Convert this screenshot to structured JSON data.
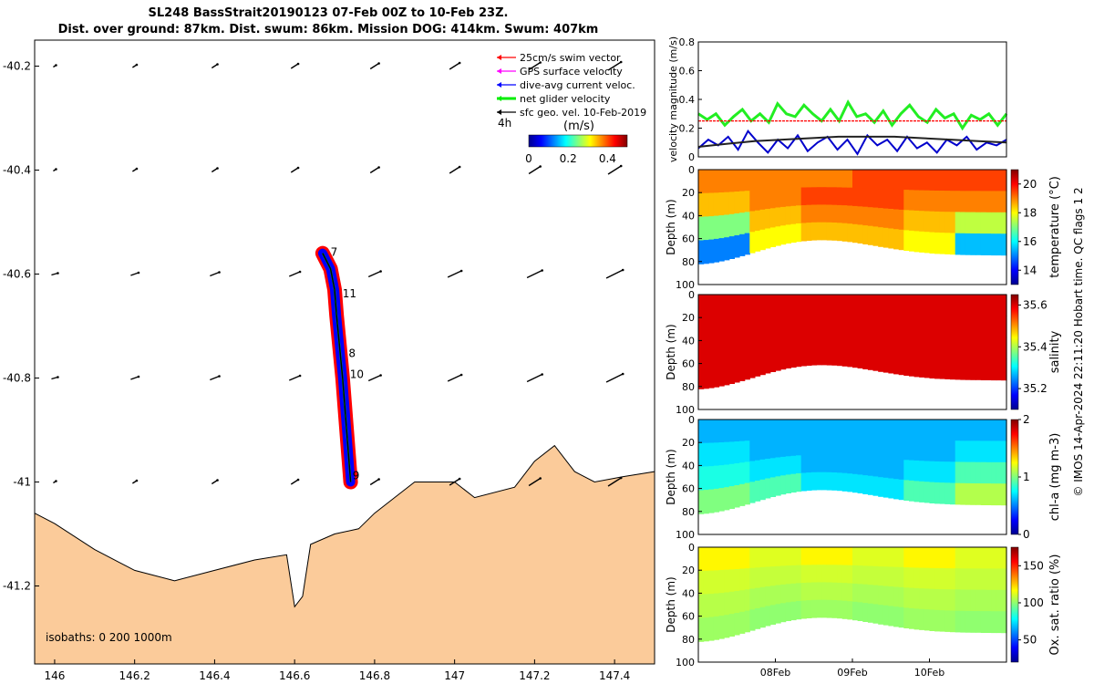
{
  "header": {
    "title_line1": "SL248 BassStrait20190123 07-Feb 00Z to 10-Feb 23Z.",
    "title_line2": "Dist. over ground: 87km. Dist. swum: 86km. Mission DOG: 414km. Swum: 407km"
  },
  "copyright": "© IMOS 14-Apr-2024 22:11:20 Hobart time. QC flags 1  2",
  "chart_data": [
    {
      "type": "map",
      "xlim": [
        145.95,
        147.5
      ],
      "ylim": [
        -41.35,
        -40.15
      ],
      "x_ticks": [
        "146",
        "146.2",
        "146.4",
        "146.6",
        "146.8",
        "147",
        "147.2",
        "147.4"
      ],
      "x_tick_values": [
        146,
        146.2,
        146.4,
        146.6,
        146.8,
        147,
        147.2,
        147.4
      ],
      "y_ticks": [
        "-40.2",
        "-40.4",
        "-40.6",
        "-40.8",
        "-41",
        "-41.2"
      ],
      "y_tick_values": [
        -40.2,
        -40.4,
        -40.6,
        -40.8,
        -41,
        -41.2
      ],
      "legend": [
        {
          "label": "25cm/s swim vector",
          "color": "#ff0000"
        },
        {
          "label": "GPS surface velocity",
          "color": "#ff00ff"
        },
        {
          "label": "dive-avg current veloc.",
          "color": "#0000ff"
        },
        {
          "label": "net glider velocity",
          "color": "#00ee00"
        },
        {
          "label": "sfc geo. vel. 10-Feb-2019",
          "color": "#000000"
        }
      ],
      "legend_position": "top-right",
      "vector_scale_label": "4h",
      "colorbar": {
        "label": "(m/s)",
        "ticks": [
          "0",
          "0.2",
          "0.4"
        ],
        "range": [
          0,
          0.5
        ]
      },
      "isobath_label": "isobaths: 0   200  1000m",
      "track_labels": [
        {
          "text": "7",
          "lon": 146.69,
          "lat": -40.565
        },
        {
          "text": "11",
          "lon": 146.72,
          "lat": -40.645
        },
        {
          "text": "8",
          "lon": 146.735,
          "lat": -40.76
        },
        {
          "text": "10",
          "lon": 146.738,
          "lat": -40.8
        },
        {
          "text": "9",
          "lon": 146.745,
          "lat": -40.995
        }
      ],
      "track": [
        {
          "lon": 146.67,
          "lat": -40.56
        },
        {
          "lon": 146.69,
          "lat": -40.59
        },
        {
          "lon": 146.7,
          "lat": -40.63
        },
        {
          "lon": 146.705,
          "lat": -40.68
        },
        {
          "lon": 146.71,
          "lat": -40.72
        },
        {
          "lon": 146.715,
          "lat": -40.76
        },
        {
          "lon": 146.72,
          "lat": -40.8
        },
        {
          "lon": 146.725,
          "lat": -40.85
        },
        {
          "lon": 146.73,
          "lat": -40.9
        },
        {
          "lon": 146.735,
          "lat": -40.95
        },
        {
          "lon": 146.74,
          "lat": -41.0
        }
      ],
      "coast": [
        {
          "lon": 145.95,
          "lat": -41.06
        },
        {
          "lon": 146.0,
          "lat": -41.08
        },
        {
          "lon": 146.1,
          "lat": -41.13
        },
        {
          "lon": 146.2,
          "lat": -41.17
        },
        {
          "lon": 146.3,
          "lat": -41.19
        },
        {
          "lon": 146.4,
          "lat": -41.17
        },
        {
          "lon": 146.5,
          "lat": -41.15
        },
        {
          "lon": 146.58,
          "lat": -41.14
        },
        {
          "lon": 146.6,
          "lat": -41.24
        },
        {
          "lon": 146.62,
          "lat": -41.22
        },
        {
          "lon": 146.64,
          "lat": -41.12
        },
        {
          "lon": 146.7,
          "lat": -41.1
        },
        {
          "lon": 146.76,
          "lat": -41.09
        },
        {
          "lon": 146.8,
          "lat": -41.06
        },
        {
          "lon": 146.85,
          "lat": -41.03
        },
        {
          "lon": 146.9,
          "lat": -41.0
        },
        {
          "lon": 147.0,
          "lat": -41.0
        },
        {
          "lon": 147.05,
          "lat": -41.03
        },
        {
          "lon": 147.15,
          "lat": -41.01
        },
        {
          "lon": 147.2,
          "lat": -40.96
        },
        {
          "lon": 147.25,
          "lat": -40.93
        },
        {
          "lon": 147.3,
          "lat": -40.98
        },
        {
          "lon": 147.35,
          "lat": -41.0
        },
        {
          "lon": 147.42,
          "lat": -40.99
        },
        {
          "lon": 147.5,
          "lat": -40.98
        }
      ]
    },
    {
      "type": "line",
      "ylabel": "velocity magnitude (m/s)",
      "ylim": [
        0,
        0.8
      ],
      "y_ticks": [
        "0",
        "0.2",
        "0.4",
        "0.6",
        "0.8"
      ],
      "y_tick_values": [
        0,
        0.2,
        0.4,
        0.6,
        0.8
      ],
      "xlim": [
        0,
        4
      ],
      "series": [
        {
          "color": "#22ee22",
          "values": [
            0.3,
            0.26,
            0.3,
            0.22,
            0.28,
            0.33,
            0.25,
            0.3,
            0.24,
            0.37,
            0.3,
            0.28,
            0.36,
            0.3,
            0.25,
            0.33,
            0.25,
            0.38,
            0.28,
            0.3,
            0.24,
            0.32,
            0.22,
            0.3,
            0.36,
            0.28,
            0.24,
            0.33,
            0.27,
            0.3,
            0.2,
            0.29,
            0.26,
            0.3,
            0.22,
            0.3
          ]
        },
        {
          "color": "#ff0000",
          "values": [
            0.25,
            0.25,
            0.25,
            0.25,
            0.25,
            0.25,
            0.25,
            0.25,
            0.25,
            0.25,
            0.25,
            0.25
          ]
        },
        {
          "color": "#0000cc",
          "values": [
            0.06,
            0.12,
            0.08,
            0.14,
            0.05,
            0.18,
            0.1,
            0.03,
            0.12,
            0.06,
            0.15,
            0.04,
            0.1,
            0.14,
            0.05,
            0.12,
            0.02,
            0.15,
            0.08,
            0.12,
            0.04,
            0.14,
            0.06,
            0.1,
            0.03,
            0.12,
            0.08,
            0.14,
            0.05,
            0.1,
            0.08,
            0.12
          ]
        },
        {
          "color": "#222222",
          "values": [
            0.07,
            0.09,
            0.11,
            0.12,
            0.13,
            0.14,
            0.14,
            0.14,
            0.13,
            0.12,
            0.11,
            0.1
          ]
        }
      ]
    },
    {
      "type": "heatmap",
      "ylabel": "Depth (m)",
      "ylim": [
        0,
        100
      ],
      "y_ticks": [
        "0",
        "20",
        "40",
        "60",
        "80",
        "100"
      ],
      "y_tick_values": [
        0,
        20,
        40,
        60,
        80,
        100
      ],
      "colorbar": {
        "label": "temperature (°C)",
        "ticks": [
          "14",
          "16",
          "18",
          "20"
        ],
        "tick_values": [
          14,
          16,
          18,
          20
        ],
        "range": [
          13,
          21
        ]
      },
      "values": [
        [
          19,
          19,
          19,
          19.5,
          19.5,
          19.5
        ],
        [
          18.5,
          19,
          19.5,
          19.5,
          19,
          19
        ],
        [
          17,
          18.5,
          19,
          19,
          18.5,
          17.5
        ],
        [
          15,
          18,
          18.5,
          18.5,
          18,
          15.5
        ]
      ]
    },
    {
      "type": "heatmap",
      "ylabel": "Depth (m)",
      "ylim": [
        0,
        100
      ],
      "y_ticks": [
        "0",
        "20",
        "40",
        "60",
        "80",
        "100"
      ],
      "y_tick_values": [
        0,
        20,
        40,
        60,
        80,
        100
      ],
      "colorbar": {
        "label": "salinity",
        "ticks": [
          "35.2",
          "35.4",
          "35.6"
        ],
        "tick_values": [
          35.2,
          35.4,
          35.6
        ],
        "range": [
          35.1,
          35.65
        ]
      },
      "values": [
        [
          35.6,
          35.6,
          35.6,
          35.6
        ],
        [
          35.6,
          35.6,
          35.6,
          35.6
        ],
        [
          35.6,
          35.6,
          35.6,
          35.6
        ],
        [
          35.6,
          35.6,
          35.6,
          35.6
        ]
      ]
    },
    {
      "type": "heatmap",
      "ylabel": "Depth (m)",
      "ylim": [
        0,
        100
      ],
      "y_ticks": [
        "0",
        "20",
        "40",
        "60",
        "80",
        "100"
      ],
      "y_tick_values": [
        0,
        20,
        40,
        60,
        80,
        100
      ],
      "colorbar": {
        "label": "chl-a (mg m-3)",
        "ticks": [
          "0",
          "1",
          "2"
        ],
        "tick_values": [
          0,
          1,
          2
        ],
        "range": [
          0,
          2
        ]
      },
      "values": [
        [
          0.6,
          0.6,
          0.6,
          0.6,
          0.6,
          0.6
        ],
        [
          0.7,
          0.6,
          0.6,
          0.6,
          0.6,
          0.7
        ],
        [
          0.8,
          0.7,
          0.6,
          0.6,
          0.7,
          0.9
        ],
        [
          1.0,
          0.9,
          0.7,
          0.7,
          0.9,
          1.1
        ]
      ]
    },
    {
      "type": "heatmap",
      "ylabel": "Depth (m)",
      "ylim": [
        0,
        100
      ],
      "y_ticks": [
        "0",
        "20",
        "40",
        "60",
        "80",
        "100"
      ],
      "y_tick_values": [
        0,
        20,
        40,
        60,
        80,
        100
      ],
      "colorbar": {
        "label": "Ox. sat. ratio (%)",
        "ticks": [
          "50",
          "100",
          "150"
        ],
        "tick_values": [
          50,
          100,
          150
        ],
        "range": [
          20,
          175
        ]
      },
      "x_ticks": [
        "08Feb",
        "09Feb",
        "10Feb"
      ],
      "x_tick_values": [
        1,
        2,
        3
      ],
      "xlim": [
        0,
        4
      ],
      "values": [
        [
          118,
          112,
          118,
          112,
          118,
          112
        ],
        [
          110,
          108,
          110,
          108,
          110,
          108
        ],
        [
          106,
          104,
          106,
          104,
          106,
          104
        ],
        [
          102,
          100,
          102,
          100,
          102,
          100
        ]
      ]
    }
  ]
}
